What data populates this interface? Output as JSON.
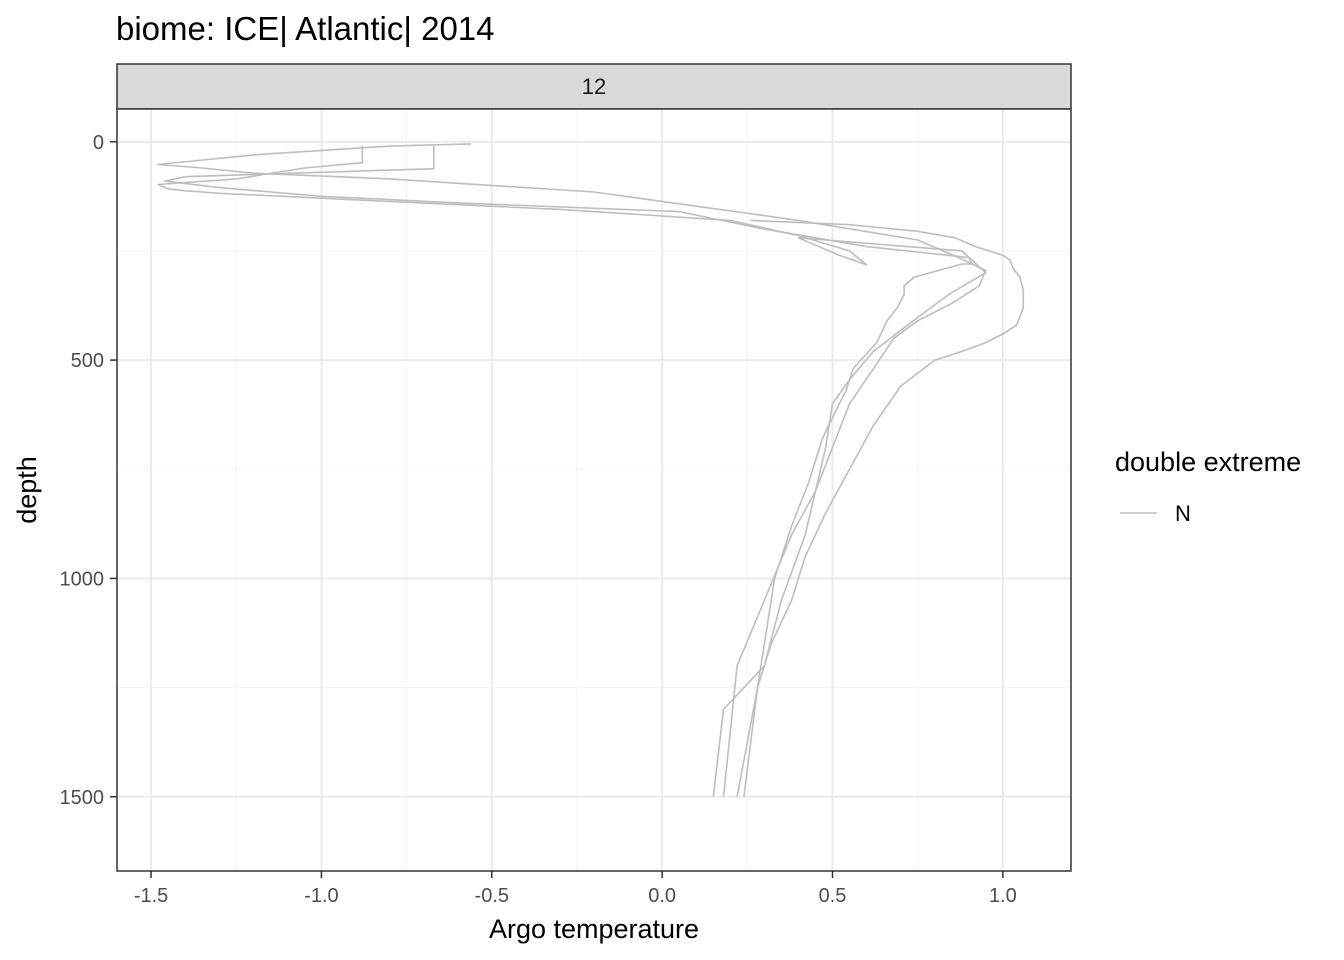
{
  "chart_data": {
    "type": "line",
    "title": "biome: ICE| Atlantic| 2014",
    "facet": "12",
    "xlabel": "Argo temperature",
    "ylabel": "depth",
    "xlim": [
      -1.6,
      1.2
    ],
    "ylim": [
      1670,
      -75
    ],
    "y_reversed": true,
    "grid": true,
    "x_ticks": [
      {
        "value": -1.5,
        "label": "-1.5"
      },
      {
        "value": -1.0,
        "label": "-1.0"
      },
      {
        "value": -0.5,
        "label": "-0.5"
      },
      {
        "value": 0.0,
        "label": "0.0"
      },
      {
        "value": 0.5,
        "label": "0.5"
      },
      {
        "value": 1.0,
        "label": "1.0"
      }
    ],
    "y_ticks": [
      {
        "value": 0,
        "label": "0"
      },
      {
        "value": 500,
        "label": "500"
      },
      {
        "value": 1000,
        "label": "1000"
      },
      {
        "value": 1500,
        "label": "1500"
      }
    ],
    "legend": {
      "title": "double extreme",
      "placement": "right",
      "entries": [
        {
          "label": "N",
          "color": "#bebebe"
        }
      ]
    },
    "series": [
      {
        "group": "N",
        "x": [
          -0.88,
          -0.88,
          -1.05,
          -1.25,
          -1.48,
          -1.45,
          -1.4,
          -1.3,
          -0.85,
          -0.3,
          0.2,
          0.4,
          0.55,
          0.6,
          0.52,
          0.4,
          0.88,
          0.95,
          0.85,
          0.78,
          0.72,
          0.62,
          0.55,
          0.5,
          0.48,
          0.45,
          0.42,
          0.35,
          0.3,
          0.18,
          0.15
        ],
        "y": [
          10,
          48,
          60,
          85,
          98,
          108,
          112,
          118,
          135,
          155,
          180,
          215,
          250,
          282,
          260,
          220,
          250,
          300,
          345,
          385,
          420,
          480,
          545,
          600,
          700,
          800,
          900,
          1050,
          1200,
          1300,
          1500
        ]
      },
      {
        "group": "N",
        "x": [
          -0.56,
          -0.8,
          -1.2,
          -1.48,
          -1.35,
          -1.2,
          -0.8,
          -0.2,
          0.4,
          0.75,
          0.87,
          0.95,
          0.93,
          0.85,
          0.75,
          0.68,
          0.62,
          0.55,
          0.5,
          0.45,
          0.38,
          0.3,
          0.22,
          0.18
        ],
        "y": [
          5,
          10,
          30,
          52,
          60,
          72,
          85,
          115,
          180,
          225,
          265,
          295,
          330,
          370,
          410,
          450,
          520,
          600,
          700,
          800,
          900,
          1050,
          1200,
          1500
        ]
      },
      {
        "group": "N",
        "x": [
          -0.67,
          -0.67,
          -0.8,
          -1.0,
          -1.4,
          -1.46,
          -1.3,
          -1.0,
          -0.6,
          0.05,
          0.3,
          0.6,
          0.9,
          0.91,
          0.88,
          0.74,
          0.71,
          0.71,
          0.69,
          0.66,
          0.63,
          0.56,
          0.54,
          0.52,
          0.47,
          0.43,
          0.38,
          0.33,
          0.28,
          0.24
        ],
        "y": [
          10,
          62,
          65,
          70,
          80,
          90,
          105,
          125,
          140,
          160,
          200,
          240,
          265,
          280,
          280,
          310,
          330,
          350,
          380,
          410,
          460,
          520,
          570,
          600,
          680,
          780,
          880,
          1000,
          1250,
          1500
        ]
      },
      {
        "group": "N",
        "x": [
          0.26,
          0.55,
          0.75,
          0.86,
          0.92,
          1.0,
          1.02,
          1.03,
          1.05,
          1.06,
          1.06,
          1.04,
          1.0,
          0.95,
          0.88,
          0.8,
          0.7,
          0.62,
          0.55,
          0.48,
          0.42,
          0.38,
          0.32,
          0.28,
          0.22
        ],
        "y": [
          180,
          190,
          205,
          220,
          240,
          260,
          270,
          290,
          310,
          340,
          380,
          420,
          440,
          460,
          480,
          500,
          560,
          650,
          750,
          850,
          950,
          1050,
          1150,
          1250,
          1500
        ]
      }
    ]
  }
}
